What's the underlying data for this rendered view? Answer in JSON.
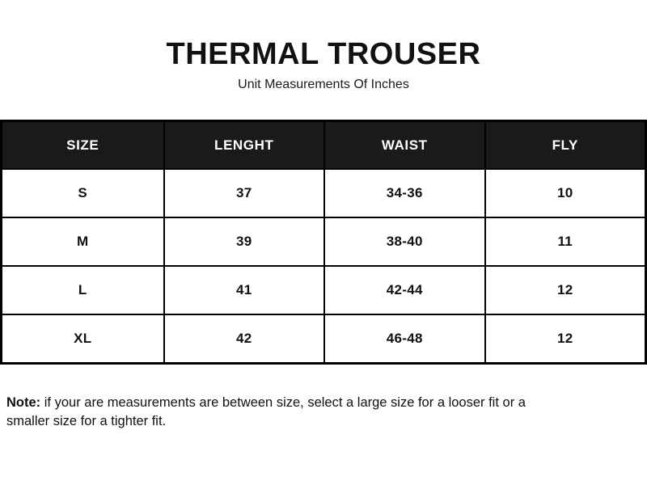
{
  "header": {
    "title": "THERMAL TROUSER",
    "subtitle": "Unit Measurements Of Inches"
  },
  "chart_data": {
    "type": "table",
    "title": "THERMAL TROUSER",
    "subtitle": "Unit Measurements Of Inches",
    "columns": [
      "SIZE",
      "LENGHT",
      "WAIST",
      "FLY"
    ],
    "rows": [
      [
        "S",
        "37",
        "34-36",
        "10"
      ],
      [
        "M",
        "39",
        "38-40",
        "11"
      ],
      [
        "L",
        "41",
        "42-44",
        "12"
      ],
      [
        "XL",
        "42",
        "46-48",
        "12"
      ]
    ]
  },
  "note": {
    "label": "Note:",
    "text": " if your are measurements are between size, select a large size for a looser fit or a smaller size for a tighter fit."
  },
  "colors": {
    "background": "#ffffff",
    "header_bg": "#1a1a1a",
    "header_text": "#ffffff",
    "border": "#000000",
    "text": "#111111"
  }
}
